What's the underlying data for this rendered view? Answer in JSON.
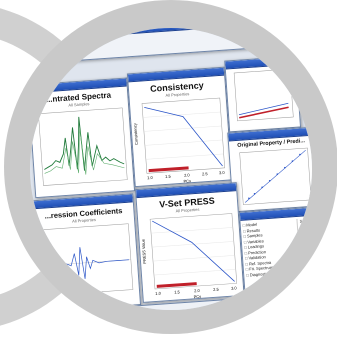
{
  "windows": {
    "spectra": {
      "title": "...ntrated Spectra",
      "subtitle": "All Samples"
    },
    "consistency": {
      "title": "Consistency",
      "subtitle": "All Properties",
      "ylabel": "Consistency",
      "xlabel": "PCs",
      "xticks": [
        "1.0",
        "1.5",
        "2.0",
        "2.5",
        "3.0"
      ]
    },
    "press": {
      "title": "V-Set PRESS",
      "subtitle": "All Properties",
      "ylabel": "PRESS Value",
      "xlabel": "PCs",
      "xticks": [
        "1.0",
        "1.5",
        "2.0",
        "2.5",
        "3.0"
      ]
    },
    "regression": {
      "title": "...ression Coefficients",
      "subtitle": "All Properties"
    },
    "original": {
      "title": "Original Property / Predi..."
    },
    "tree": {
      "items": [
        "Model",
        "Results",
        "Samples",
        "Variables",
        "Loadings",
        "Prediction",
        "Validation",
        "Ref. Spectra",
        "Fit. Spectrum",
        "Diagnostics"
      ],
      "right_items": [
        "Sample",
        "Outlier",
        "Outlier",
        "Outlier",
        "Outlier",
        "Outlier"
      ]
    }
  },
  "accents": {
    "titlebar": "#2a5cc6",
    "plot_line": "#2b55c8",
    "spectra": "#1f7a3a",
    "marker_bar": "#c0202a"
  }
}
